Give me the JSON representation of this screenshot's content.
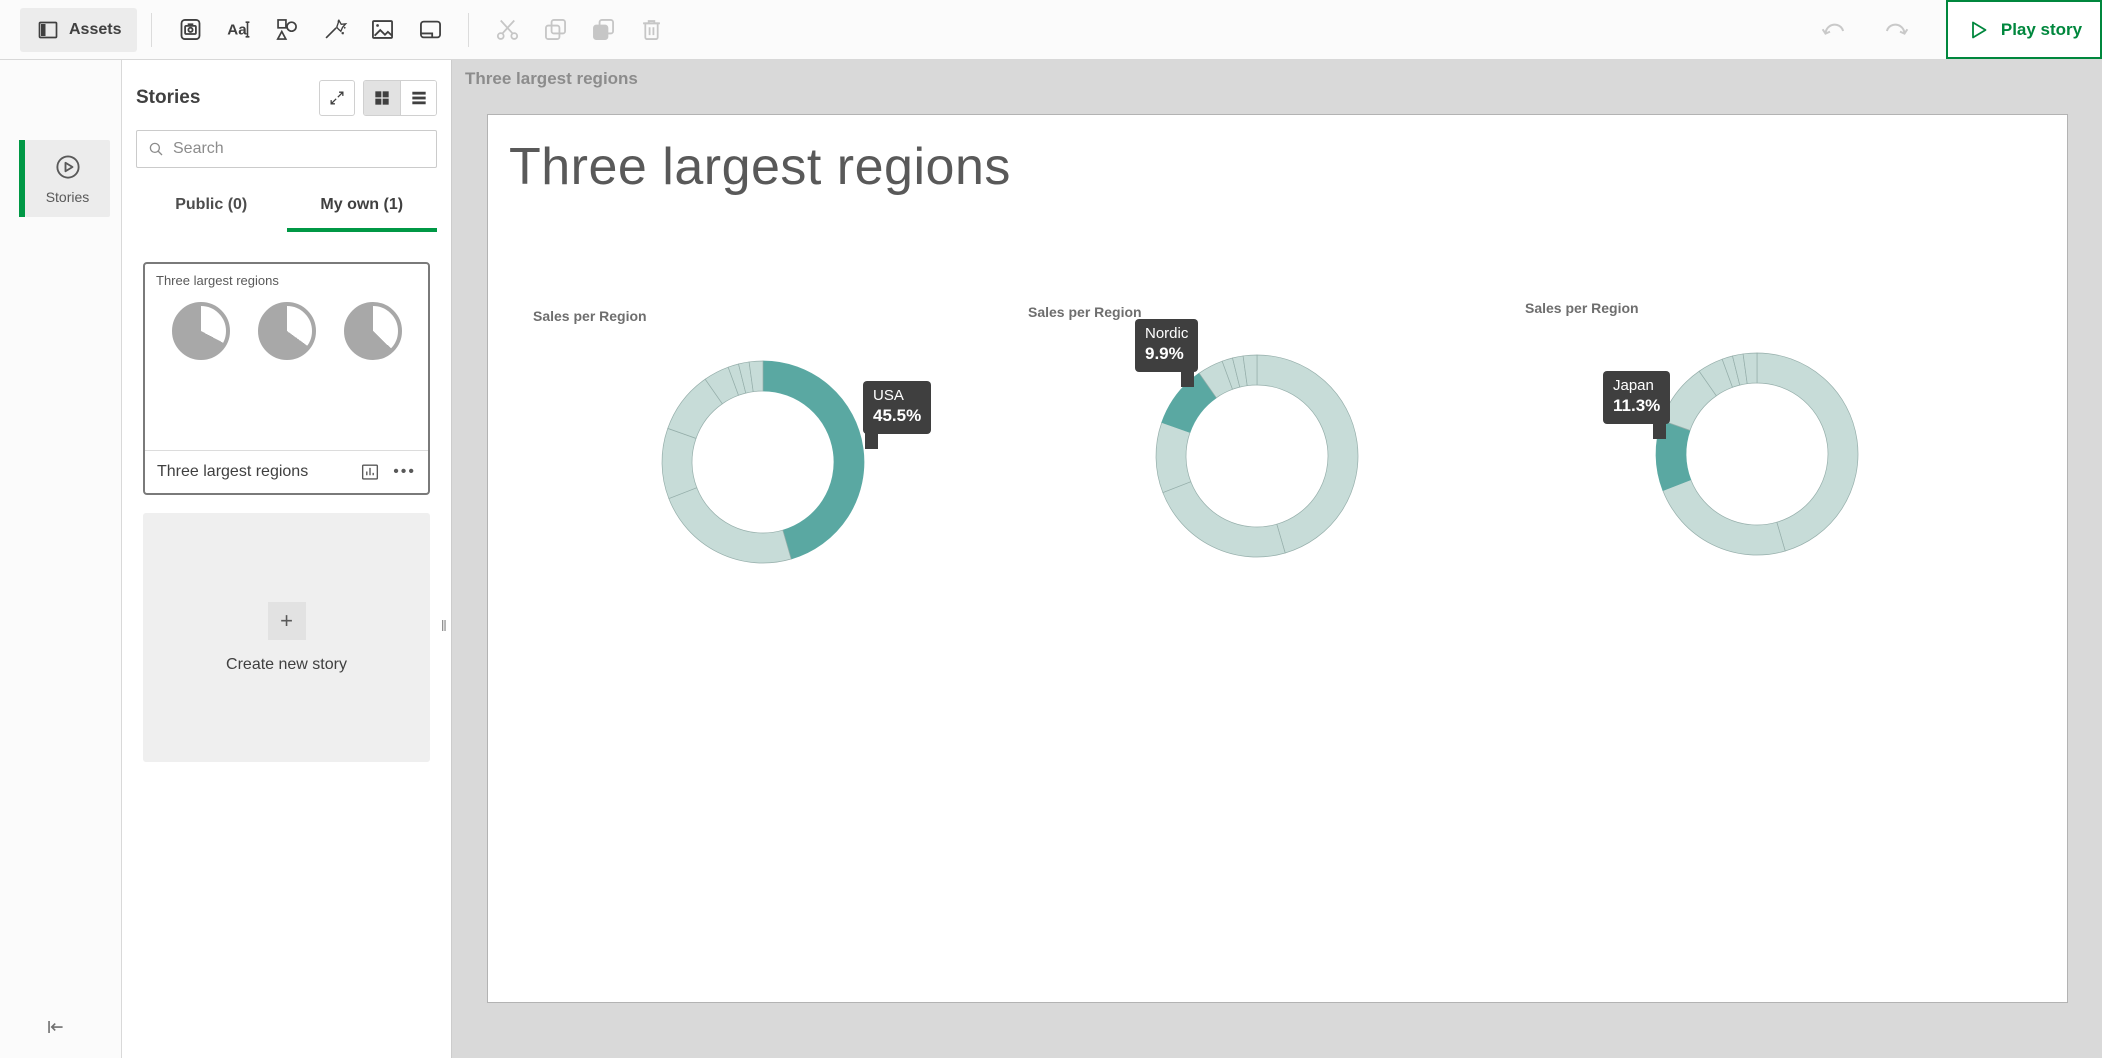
{
  "toolbar": {
    "assets_label": "Assets",
    "play_story_label": "Play story"
  },
  "left_rail": {
    "stories_label": "Stories"
  },
  "stories_panel": {
    "title": "Stories",
    "search_placeholder": "Search",
    "tabs": [
      {
        "label": "Public (0)",
        "active": false
      },
      {
        "label": "My own (1)",
        "active": true
      }
    ],
    "story_card": {
      "header_label": "Three largest regions",
      "footer_label": "Three largest regions",
      "more_glyph": "•••"
    },
    "create_card": {
      "plus_glyph": "+",
      "label": "Create new story"
    }
  },
  "canvas": {
    "breadcrumb": "Three largest regions",
    "slide_title": "Three largest regions"
  },
  "colors": {
    "accent_green": "#009845",
    "play_green": "#00873d",
    "pie_highlight": "#5aa8a2",
    "pie_base": "#c7dcd8",
    "pie_separator": "#95aeaa",
    "tooltip_bg": "#3f3f3f",
    "canvas_bg": "#d9d9d9"
  },
  "chart_data": [
    {
      "type": "pie",
      "title": "Sales per Region",
      "legend": false,
      "donut": true,
      "highlight": {
        "label": "USA",
        "value": "45.5%"
      },
      "segments": [
        {
          "label": "USA",
          "pct": 45.5,
          "highlighted": true
        },
        {
          "label": "",
          "pct": 23.6,
          "highlighted": false
        },
        {
          "label": "Japan",
          "pct": 11.3,
          "highlighted": false
        },
        {
          "label": "Nordic",
          "pct": 9.9,
          "highlighted": false
        },
        {
          "label": "",
          "pct": 4.1,
          "highlighted": false
        },
        {
          "label": "",
          "pct": 1.7,
          "highlighted": false
        },
        {
          "label": "",
          "pct": 1.7,
          "highlighted": false
        },
        {
          "label": "",
          "pct": 2.2,
          "highlighted": false
        }
      ]
    },
    {
      "type": "pie",
      "title": "Sales per Region",
      "legend": false,
      "donut": true,
      "highlight": {
        "label": "Nordic",
        "value": "9.9%"
      },
      "segments": [
        {
          "label": "USA",
          "pct": 45.5,
          "highlighted": false
        },
        {
          "label": "",
          "pct": 23.6,
          "highlighted": false
        },
        {
          "label": "Japan",
          "pct": 11.3,
          "highlighted": false
        },
        {
          "label": "Nordic",
          "pct": 9.9,
          "highlighted": true
        },
        {
          "label": "",
          "pct": 4.1,
          "highlighted": false
        },
        {
          "label": "",
          "pct": 1.7,
          "highlighted": false
        },
        {
          "label": "",
          "pct": 1.7,
          "highlighted": false
        },
        {
          "label": "",
          "pct": 2.2,
          "highlighted": false
        }
      ]
    },
    {
      "type": "pie",
      "title": "Sales per Region",
      "legend": false,
      "donut": true,
      "highlight": {
        "label": "Japan",
        "value": "11.3%"
      },
      "segments": [
        {
          "label": "USA",
          "pct": 45.5,
          "highlighted": false
        },
        {
          "label": "",
          "pct": 23.6,
          "highlighted": false
        },
        {
          "label": "Japan",
          "pct": 11.3,
          "highlighted": true
        },
        {
          "label": "Nordic",
          "pct": 9.9,
          "highlighted": false
        },
        {
          "label": "",
          "pct": 4.1,
          "highlighted": false
        },
        {
          "label": "",
          "pct": 1.7,
          "highlighted": false
        },
        {
          "label": "",
          "pct": 1.7,
          "highlighted": false
        },
        {
          "label": "",
          "pct": 2.2,
          "highlighted": false
        }
      ]
    }
  ]
}
